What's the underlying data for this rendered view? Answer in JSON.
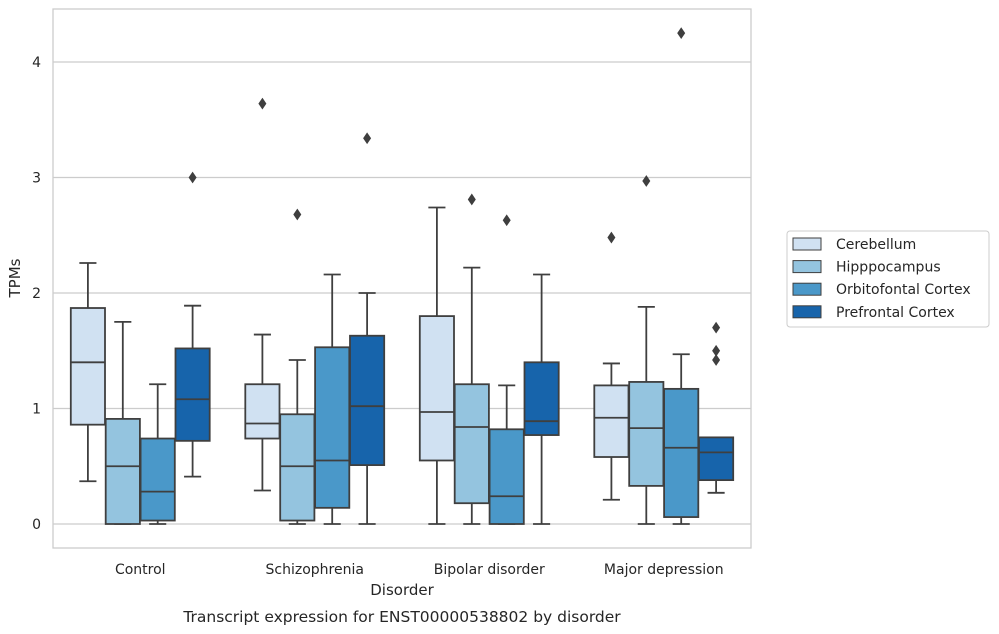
{
  "chart_data": {
    "type": "box",
    "title": "",
    "caption": "Transcript expression for ENST00000538802 by disorder",
    "xlabel": "Disorder",
    "ylabel": "TPMs",
    "ylim": [
      -0.2,
      4.45
    ],
    "yticks": [
      0,
      1,
      2,
      3,
      4
    ],
    "grid": "horizontal",
    "legend_position": "right-outside",
    "categories": [
      "Control",
      "Schizophrenia",
      "Bipolar disorder",
      "Major depression"
    ],
    "series": [
      {
        "name": "Cerebellum",
        "color": "#d0e1f2",
        "boxes": [
          {
            "whisker_low": 0.37,
            "q1": 0.86,
            "median": 1.4,
            "q3": 1.87,
            "whisker_high": 2.26,
            "outliers": []
          },
          {
            "whisker_low": 0.29,
            "q1": 0.74,
            "median": 0.87,
            "q3": 1.21,
            "whisker_high": 1.64,
            "outliers": [
              3.64
            ]
          },
          {
            "whisker_low": 0.0,
            "q1": 0.55,
            "median": 0.97,
            "q3": 1.8,
            "whisker_high": 2.74,
            "outliers": []
          },
          {
            "whisker_low": 0.21,
            "q1": 0.58,
            "median": 0.92,
            "q3": 1.2,
            "whisker_high": 1.39,
            "outliers": [
              2.48
            ]
          }
        ]
      },
      {
        "name": "Hipppocampus",
        "color": "#94c4df",
        "boxes": [
          {
            "whisker_low": 0.0,
            "q1": 0.0,
            "median": 0.5,
            "q3": 0.91,
            "whisker_high": 1.75,
            "outliers": []
          },
          {
            "whisker_low": 0.0,
            "q1": 0.03,
            "median": 0.5,
            "q3": 0.95,
            "whisker_high": 1.42,
            "outliers": [
              2.68
            ]
          },
          {
            "whisker_low": 0.0,
            "q1": 0.18,
            "median": 0.84,
            "q3": 1.21,
            "whisker_high": 2.22,
            "outliers": [
              2.81
            ]
          },
          {
            "whisker_low": 0.0,
            "q1": 0.33,
            "median": 0.83,
            "q3": 1.23,
            "whisker_high": 1.88,
            "outliers": [
              2.97
            ]
          }
        ]
      },
      {
        "name": "Orbitofontal Cortex",
        "color": "#4a98c9",
        "boxes": [
          {
            "whisker_low": 0.0,
            "q1": 0.03,
            "median": 0.28,
            "q3": 0.74,
            "whisker_high": 1.21,
            "outliers": []
          },
          {
            "whisker_low": 0.0,
            "q1": 0.14,
            "median": 0.55,
            "q3": 1.53,
            "whisker_high": 2.16,
            "outliers": []
          },
          {
            "whisker_low": 0.0,
            "q1": 0.0,
            "median": 0.24,
            "q3": 0.82,
            "whisker_high": 1.2,
            "outliers": [
              2.63
            ]
          },
          {
            "whisker_low": 0.0,
            "q1": 0.06,
            "median": 0.66,
            "q3": 1.17,
            "whisker_high": 1.47,
            "outliers": [
              4.25
            ]
          }
        ]
      },
      {
        "name": "Prefrontal Cortex",
        "color": "#1764ab",
        "boxes": [
          {
            "whisker_low": 0.41,
            "q1": 0.72,
            "median": 1.08,
            "q3": 1.52,
            "whisker_high": 1.89,
            "outliers": [
              3.0
            ]
          },
          {
            "whisker_low": 0.0,
            "q1": 0.51,
            "median": 1.02,
            "q3": 1.63,
            "whisker_high": 2.0,
            "outliers": [
              3.34
            ]
          },
          {
            "whisker_low": 0.0,
            "q1": 0.77,
            "median": 0.89,
            "q3": 1.4,
            "whisker_high": 2.16,
            "outliers": []
          },
          {
            "whisker_low": 0.27,
            "q1": 0.38,
            "median": 0.62,
            "q3": 0.75,
            "whisker_high": 0.75,
            "outliers": [
              1.42,
              1.5,
              1.7
            ]
          }
        ]
      }
    ]
  }
}
